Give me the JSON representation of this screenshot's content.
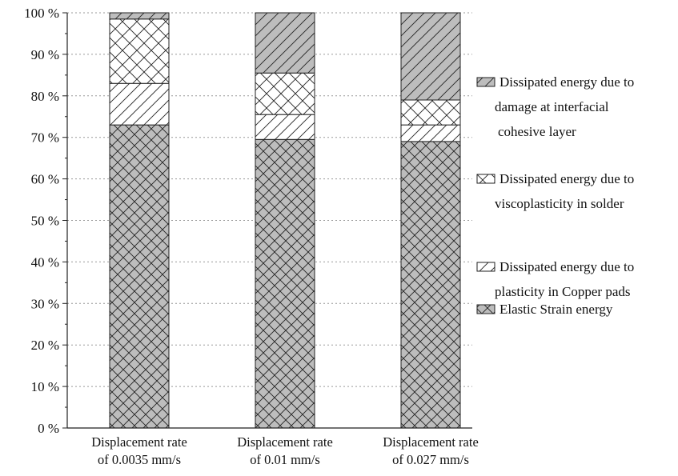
{
  "chart_data": {
    "type": "bar",
    "stacked": true,
    "title": "",
    "xlabel": "",
    "ylabel": "",
    "ylim": [
      0,
      100
    ],
    "y_tick_format": "{v} %",
    "y_ticks": [
      0,
      10,
      20,
      30,
      40,
      50,
      60,
      70,
      80,
      90,
      100
    ],
    "grid": "horizontal dotted",
    "legend_position": "right",
    "categories": [
      [
        "Displacement rate",
        "of 0.0035 mm/s"
      ],
      [
        "Displacement rate",
        "of 0.01 mm/s"
      ],
      [
        "Displacement rate",
        "of 0.027 mm/s"
      ]
    ],
    "series": [
      {
        "name": "Elastic Strain energy",
        "legend_lines": [
          "Elastic Strain energy"
        ],
        "pattern": "dense-crosshatch-gray",
        "values": [
          73,
          69.5,
          69
        ]
      },
      {
        "name": "Dissipated energy due to plasticity in Copper pads",
        "legend_lines": [
          "Dissipated energy due to",
          "plasticity in Copper pads"
        ],
        "pattern": "diagonal-white",
        "values": [
          10,
          6,
          4
        ]
      },
      {
        "name": "Dissipated energy due to viscoplasticity in solder",
        "legend_lines": [
          "Dissipated energy due to",
          "viscoplasticity in solder"
        ],
        "pattern": "crosshatch-white",
        "values": [
          15.5,
          10,
          6
        ]
      },
      {
        "name": "Dissipated energy due to damage at interfacial cohesive layer",
        "legend_lines": [
          "Dissipated energy due to",
          "damage at interfacial",
          "cohesive layer"
        ],
        "pattern": "diagonal-gray",
        "values": [
          1.5,
          14.5,
          21
        ]
      }
    ],
    "colors": {
      "gray_fill": "#bdbdbd",
      "white_fill": "#ffffff",
      "line": "#222222",
      "grid": "#9a9a9a"
    }
  }
}
